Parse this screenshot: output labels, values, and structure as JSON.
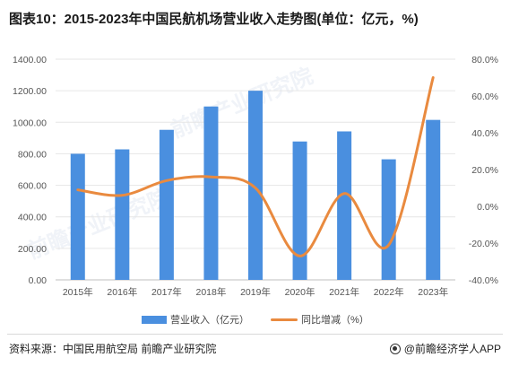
{
  "title": "图表10：2015-2023年中国民航机场营业收入走势图(单位：亿元，%)",
  "source": "资料来源：中国民用航空局 前瞻产业研究院",
  "brand": "@前瞻经济学人APP",
  "watermark": "前瞻产业研究院",
  "colors": {
    "bar": "#4a8fdf",
    "line": "#e98a3f",
    "grid": "#e6e6e6",
    "axis_text": "#555555"
  },
  "chart_data": {
    "type": "bar",
    "categories": [
      "2015年",
      "2016年",
      "2017年",
      "2018年",
      "2019年",
      "2020年",
      "2021年",
      "2022年",
      "2023年"
    ],
    "series": [
      {
        "name": "营业收入（亿元）",
        "type": "bar",
        "axis": "left",
        "values": [
          800,
          828,
          952,
          1100,
          1200,
          878,
          942,
          765,
          1015
        ]
      },
      {
        "name": "同比增减（%）",
        "type": "line",
        "axis": "right",
        "smooth": true,
        "values": [
          9.0,
          6.0,
          14.0,
          16.0,
          10.0,
          -27.0,
          7.0,
          -21.0,
          70.0
        ]
      }
    ],
    "y_left": {
      "min": 0,
      "max": 1400,
      "ticks": [
        "0.00",
        "200.00",
        "400.00",
        "600.00",
        "800.00",
        "1000.00",
        "1200.00",
        "1400.00"
      ]
    },
    "y_right": {
      "min": -40,
      "max": 80,
      "ticks": [
        "-40.0%",
        "-20.0%",
        "0.0%",
        "20.0%",
        "40.0%",
        "60.0%",
        "80.0%"
      ]
    },
    "grid": true,
    "legend_position": "bottom"
  }
}
